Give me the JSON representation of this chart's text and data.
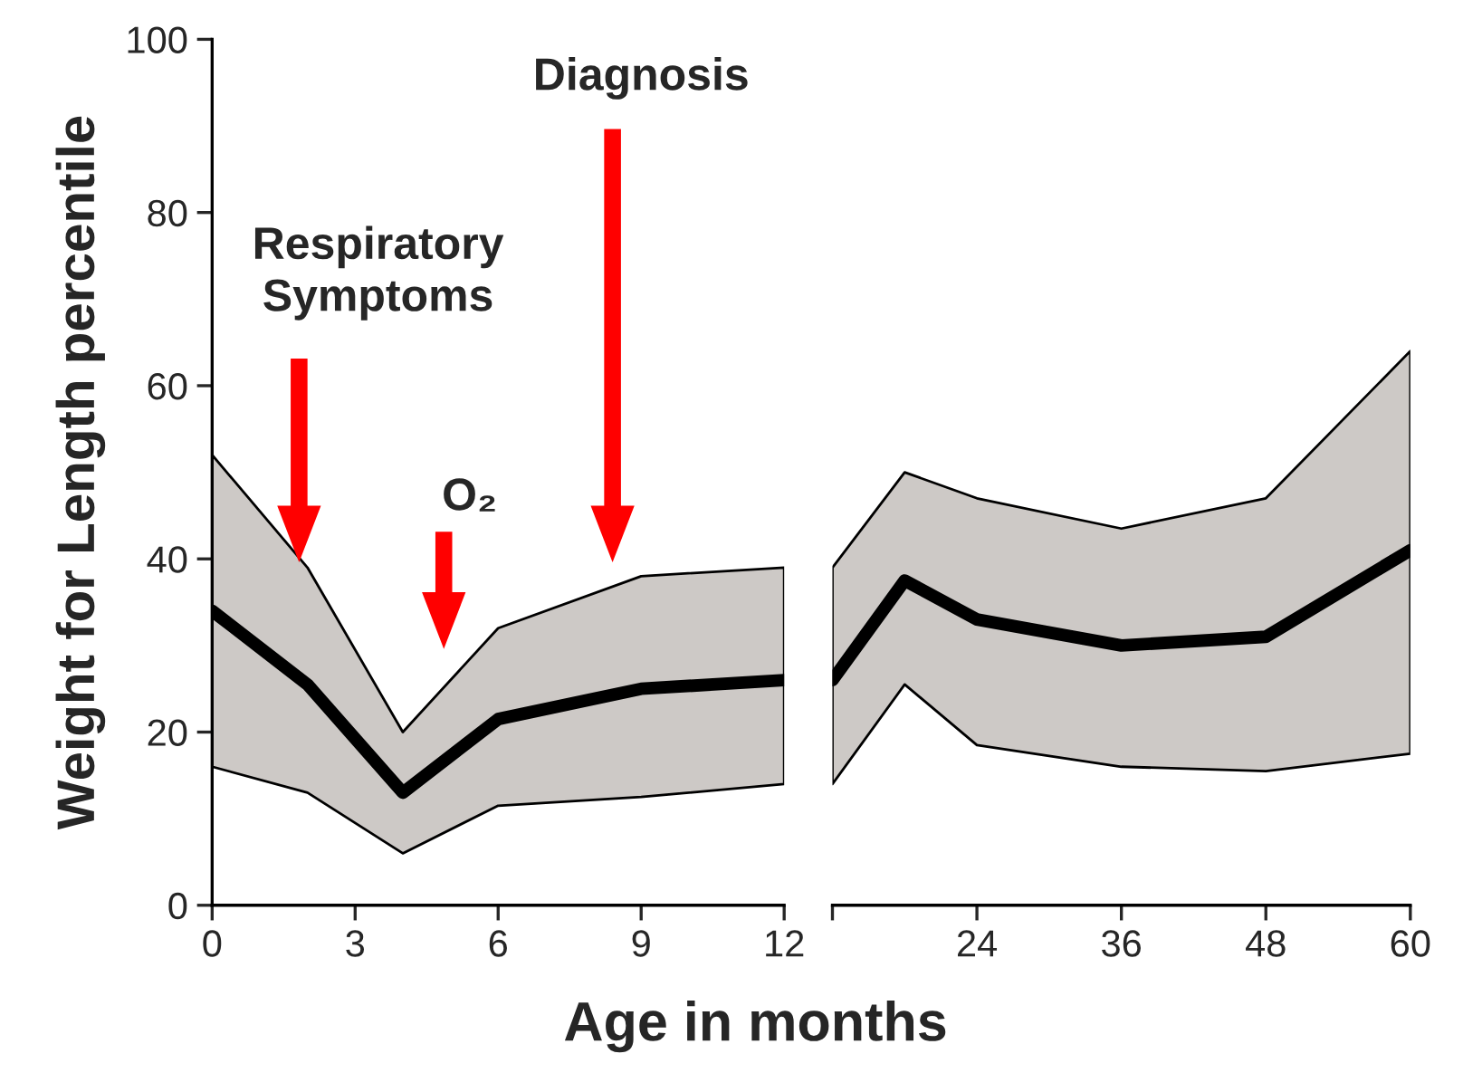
{
  "chart_data": [
    {
      "type": "line",
      "ylabel": "Weight for Length percentile",
      "xlabel": "Age in months",
      "x": [
        0,
        2,
        4,
        6,
        9,
        12
      ],
      "series": [
        {
          "color": "#000000",
          "values": [
            34,
            25.5,
            13,
            21.5,
            25,
            26
          ],
          "lower": [
            16,
            13,
            6,
            11.5,
            12.5,
            14
          ],
          "upper": [
            52,
            39,
            20,
            32,
            38,
            39
          ]
        }
      ],
      "xlim": [
        0,
        12
      ],
      "xticks": [
        0,
        3,
        6,
        9,
        12
      ],
      "ylim": [
        0,
        100
      ],
      "yticks": [
        0,
        20,
        40,
        60,
        80,
        100
      ],
      "grid": false,
      "legend": false,
      "annotations": [
        "Respiratory\nSymptoms",
        "O₂",
        "Diagnosis"
      ]
    },
    {
      "type": "line",
      "x": [
        12,
        18,
        24,
        36,
        48,
        60
      ],
      "series": [
        {
          "color": "#000000",
          "values": [
            26,
            37.5,
            33,
            30,
            31,
            41
          ],
          "lower": [
            14,
            25.5,
            18.5,
            16,
            15.5,
            17.5
          ],
          "upper": [
            39,
            50,
            47,
            43.5,
            47,
            64
          ]
        }
      ],
      "xlim": [
        12,
        60
      ],
      "xticks": [
        {
          "value": 12,
          "label": null
        },
        24,
        36,
        48,
        60
      ],
      "ylim": [
        0,
        100
      ],
      "tick_labels": "x",
      "grid": false,
      "legend": false
    }
  ]
}
